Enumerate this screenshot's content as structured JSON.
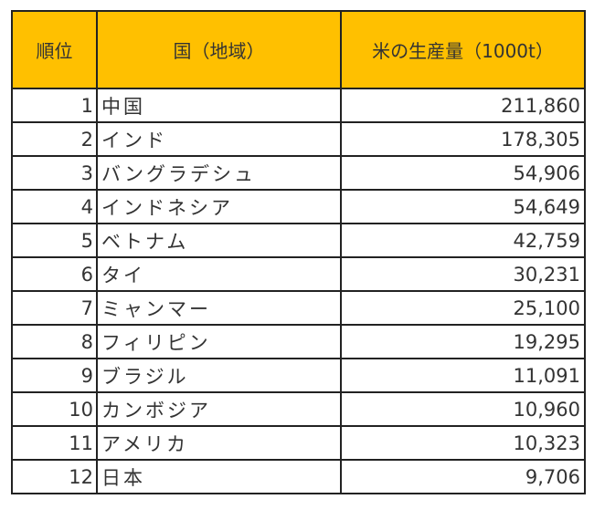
{
  "table": {
    "header_color": "#ffc000",
    "columns": [
      {
        "key": "rank",
        "label": "順位"
      },
      {
        "key": "country",
        "label": "国（地域）"
      },
      {
        "key": "amount",
        "label": "米の生産量（1000t）"
      }
    ],
    "rows": [
      {
        "rank": "1",
        "country": "中国",
        "amount": "211,860"
      },
      {
        "rank": "2",
        "country": "インド",
        "amount": "178,305"
      },
      {
        "rank": "3",
        "country": "バングラデシュ",
        "amount": "54,906"
      },
      {
        "rank": "4",
        "country": "インドネシア",
        "amount": "54,649"
      },
      {
        "rank": "5",
        "country": "ベトナム",
        "amount": "42,759"
      },
      {
        "rank": "6",
        "country": "タイ",
        "amount": "30,231"
      },
      {
        "rank": "7",
        "country": "ミャンマー",
        "amount": "25,100"
      },
      {
        "rank": "8",
        "country": "フィリピン",
        "amount": "19,295"
      },
      {
        "rank": "9",
        "country": "ブラジル",
        "amount": "11,091"
      },
      {
        "rank": "10",
        "country": "カンボジア",
        "amount": "10,960"
      },
      {
        "rank": "11",
        "country": "アメリカ",
        "amount": "10,323"
      },
      {
        "rank": "12",
        "country": "日本",
        "amount": "9,706"
      }
    ]
  }
}
